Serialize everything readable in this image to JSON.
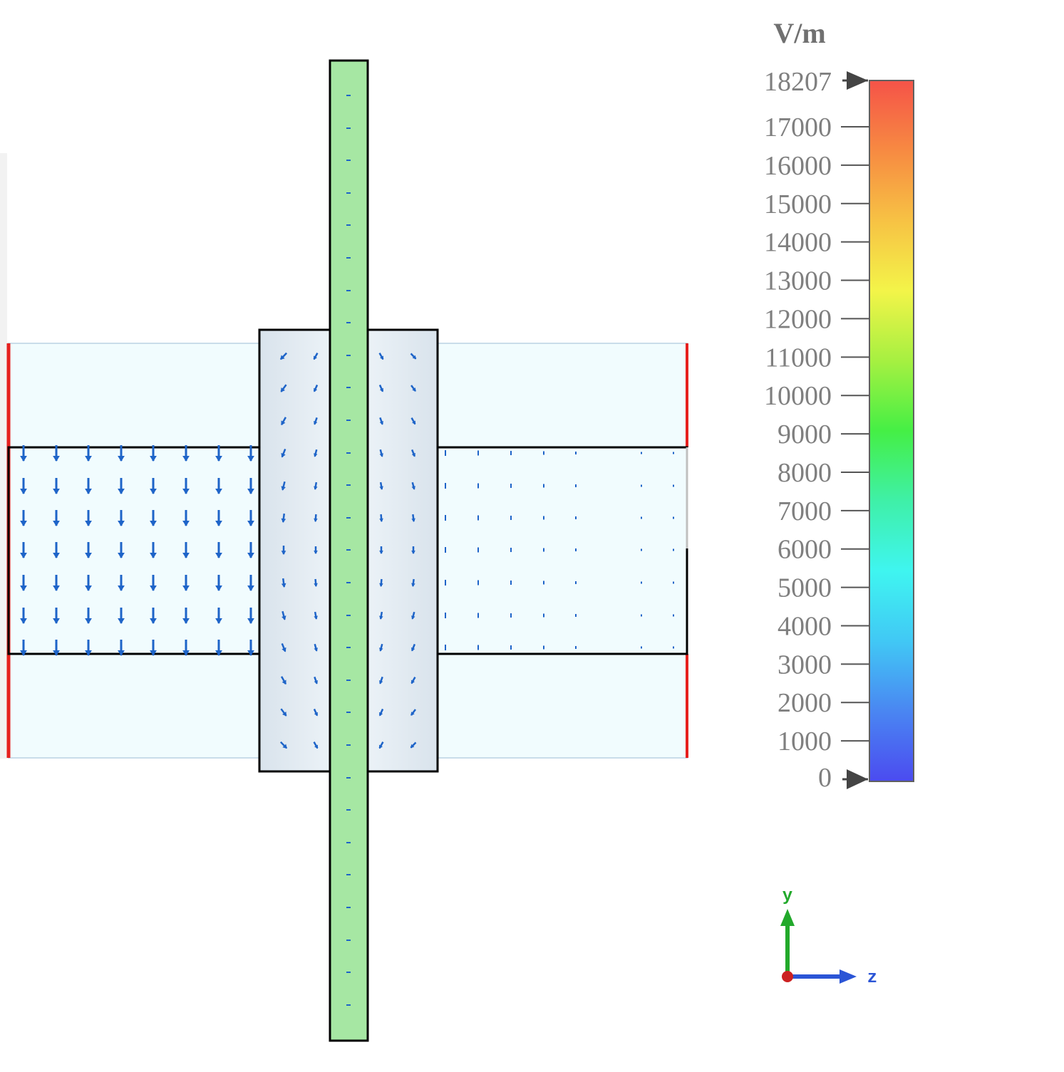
{
  "legend": {
    "unit": "V/m",
    "max_label": "18207",
    "min_label": "0",
    "ticks": [
      "17000",
      "16000",
      "15000",
      "14000",
      "13000",
      "12000",
      "11000",
      "10000",
      "9000",
      "8000",
      "7000",
      "6000",
      "5000",
      "4000",
      "3000",
      "2000",
      "1000"
    ],
    "colormap": [
      "#4b4bf0",
      "#4a86f2",
      "#41c8f5",
      "#3ff5f0",
      "#3ff0a8",
      "#45ef45",
      "#a6f041",
      "#f3f449",
      "#f7c244",
      "#f78a42",
      "#f55348"
    ]
  },
  "axes_triad": {
    "vertical_label": "y",
    "horizontal_label": "z",
    "vertical_color": "#22a92b",
    "horizontal_color": "#2b55d6",
    "origin_color": "#cc2222"
  },
  "colors": {
    "domain_fill": "#f1fcfe",
    "collar_fill": "#e4ecf2",
    "strip_fill": "#a6e7a3",
    "arrow_color": "#1e64c8",
    "boundary_red": "#e6201e"
  }
}
